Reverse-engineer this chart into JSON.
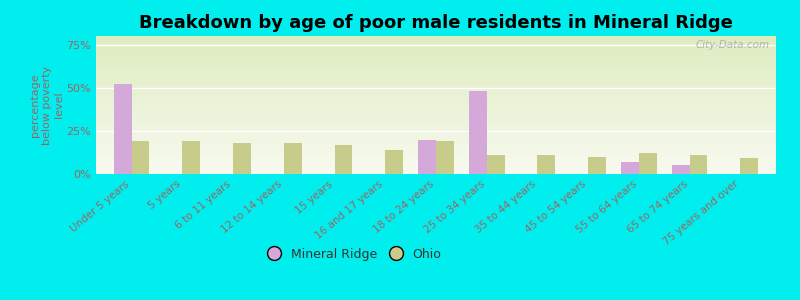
{
  "title": "Breakdown by age of poor male residents in Mineral Ridge",
  "ylabel": "percentage\nbelow poverty\nlevel",
  "categories": [
    "Under 5 years",
    "5 years",
    "6 to 11 years",
    "12 to 14 years",
    "15 years",
    "16 and 17 years",
    "18 to 24 years",
    "25 to 34 years",
    "35 to 44 years",
    "45 to 54 years",
    "55 to 64 years",
    "65 to 74 years",
    "75 years and over"
  ],
  "mineral_ridge": [
    52,
    0,
    0,
    0,
    0,
    0,
    20,
    48,
    0,
    0,
    7,
    5,
    0
  ],
  "ohio": [
    19,
    19,
    18,
    18,
    17,
    14,
    19,
    11,
    11,
    10,
    12,
    11,
    9
  ],
  "mineral_ridge_color": "#d4a8d8",
  "ohio_color": "#c8cc8a",
  "plot_bg_top": "#f8faf0",
  "plot_bg_bottom": "#deecc0",
  "outer_bg": "#00eeee",
  "tick_color": "#996666",
  "ylabel_color": "#996666",
  "ytick_labels": [
    "0%",
    "25%",
    "50%",
    "75%"
  ],
  "yticks": [
    0,
    25,
    50,
    75
  ],
  "ylim": [
    0,
    80
  ],
  "title_fontsize": 13,
  "bar_width": 0.35,
  "legend_mineral_ridge": "Mineral Ridge",
  "legend_ohio": "Ohio",
  "watermark": "City-Data.com"
}
